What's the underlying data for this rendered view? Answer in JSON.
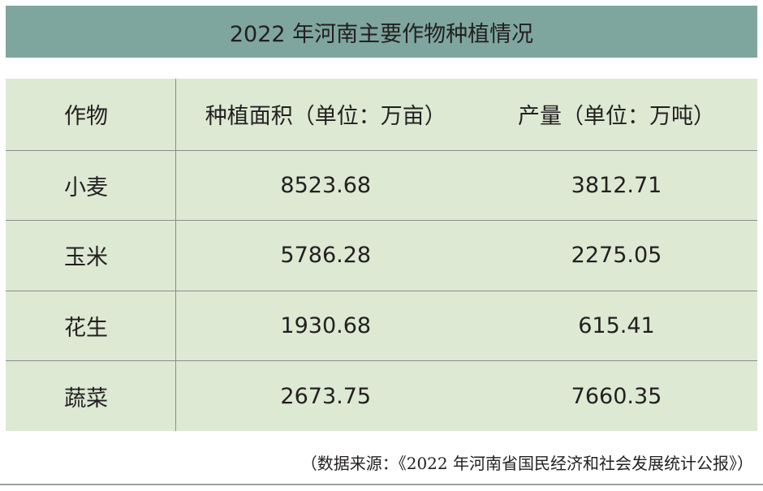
{
  "title": "2022 年河南主要作物种植情况",
  "table": {
    "headers": [
      "作物",
      "种植面积（单位：万亩）",
      "产量（单位：万吨）"
    ],
    "rows": [
      {
        "crop": "小麦",
        "area": "8523.68",
        "output": "3812.71"
      },
      {
        "crop": "玉米",
        "area": "5786.28",
        "output": "2275.05"
      },
      {
        "crop": "花生",
        "area": "1930.68",
        "output": "615.41"
      },
      {
        "crop": "蔬菜",
        "area": "2673.75",
        "output": "7660.35"
      }
    ]
  },
  "source": "（数据来源：《2022 年河南省国民经济和社会发展统计公报》）",
  "colors": {
    "title_background": "#7ea69e",
    "table_background": "#dde9d3",
    "rule": "#8c8c8c"
  }
}
